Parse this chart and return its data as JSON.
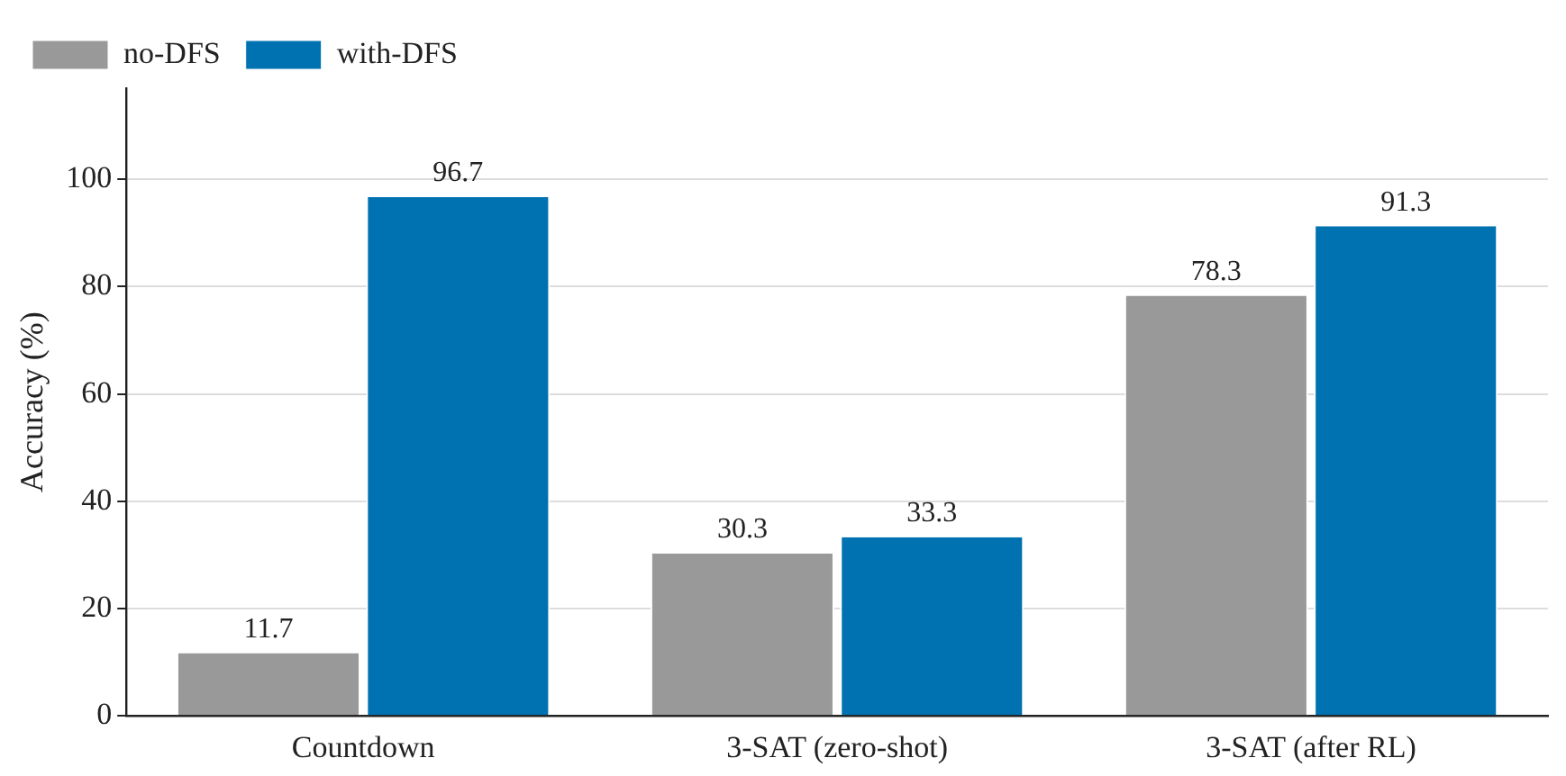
{
  "chart_data": {
    "type": "bar",
    "ylabel": "Accuracy (%)",
    "categories": [
      "Countdown",
      "3-SAT (zero-shot)",
      "3-SAT (after RL)"
    ],
    "series": [
      {
        "name": "no-DFS",
        "color": "#999999",
        "values": [
          11.7,
          30.3,
          78.3
        ]
      },
      {
        "name": "with-DFS",
        "color": "#0072b2",
        "values": [
          96.7,
          33.3,
          91.3
        ]
      }
    ],
    "ylim": [
      0,
      117
    ],
    "yticks": [
      0,
      20,
      40,
      60,
      80,
      100
    ],
    "grid": "y",
    "legend": "top left",
    "data_labels": true
  }
}
